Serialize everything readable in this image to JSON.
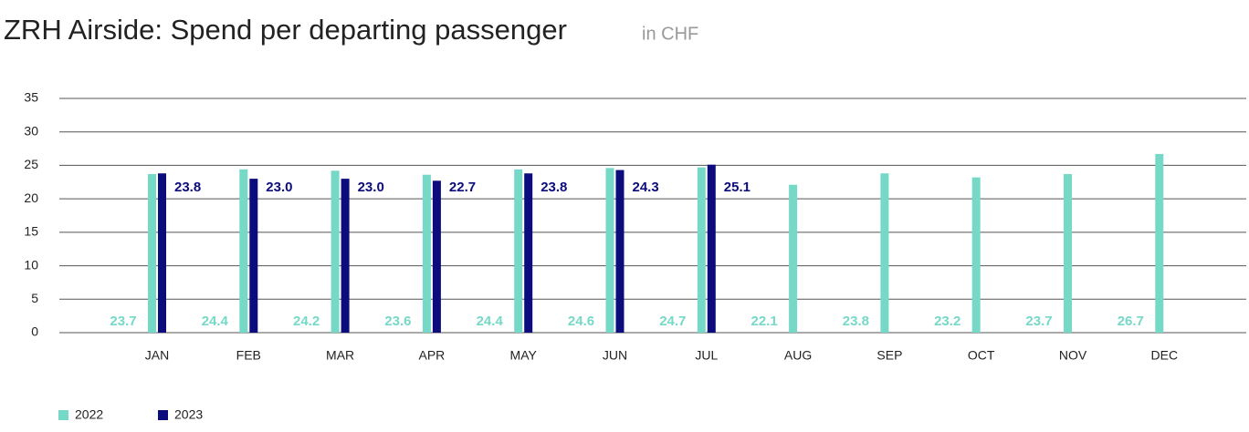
{
  "chart_data": {
    "type": "bar",
    "title": "ZRH Airside: Spend per departing passenger",
    "subtitle": "in CHF",
    "categories": [
      "JAN",
      "FEB",
      "MAR",
      "APR",
      "MAY",
      "JUN",
      "JUL",
      "AUG",
      "SEP",
      "OCT",
      "NOV",
      "DEC"
    ],
    "series": [
      {
        "name": "2022",
        "color": "#76d9c8",
        "values": [
          23.7,
          24.4,
          24.2,
          23.6,
          24.4,
          24.6,
          24.7,
          22.1,
          23.8,
          23.2,
          23.7,
          26.7
        ]
      },
      {
        "name": "2023",
        "color": "#0c0c7c",
        "values": [
          23.8,
          23.0,
          23.0,
          22.7,
          23.8,
          24.3,
          25.1,
          null,
          null,
          null,
          null,
          null
        ],
        "value_labels": [
          "23.8",
          "23.0",
          "23.0",
          "22.7",
          "23.8",
          "24.3",
          "25.1",
          null,
          null,
          null,
          null,
          null
        ]
      }
    ],
    "ylim": [
      0,
      35
    ],
    "yticks": [
      0,
      5,
      10,
      15,
      20,
      25,
      30,
      35
    ],
    "grid": true,
    "legend": "bottom-left"
  }
}
